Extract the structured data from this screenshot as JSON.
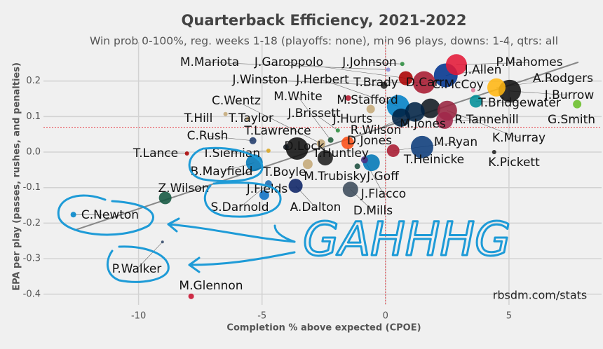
{
  "chart_data": {
    "type": "scatter",
    "title": "Quarterback Efficiency, 2021-2022",
    "subtitle": "Win prob 0-100%, reg. weeks 1-18 (playoffs: none), min 96 plays, downs: 1-4, qtrs: all",
    "x_label": "Completion % above expected (CPOE)",
    "y_label": "EPA per play (passes, rushes, and penalties)",
    "source": "rbsdm.com/stats",
    "annotation": "GAHHHG",
    "xlim": [
      -13.85,
      8.75
    ],
    "xticks": [
      -10,
      -5,
      0,
      5
    ],
    "ylim": [
      -0.43,
      0.29
    ],
    "yticks": [
      0.2,
      0.1,
      {
        "value": 0,
        "label": "0.0"
      },
      -0.1,
      -0.2,
      -0.3,
      -0.4
    ],
    "grid": true,
    "reference_lines": {
      "x": 0,
      "y": 0.07,
      "color": "#e8474f"
    },
    "trendline": {
      "x": [
        -12.6,
        7.81
      ],
      "y": [
        -0.22,
        0.253
      ],
      "color": "#888888"
    },
    "series": [
      {
        "name": "QBs",
        "labels": [
          "P.Mahomes",
          "J.Allen",
          "J.Johnson",
          "M.Mariota",
          "J.Garoppolo",
          "T.Brady",
          "J.Winston",
          "C.McCoy",
          "A.Rodgers",
          "J.Burrow",
          "G.Smith",
          "T.Bridgewater",
          "J.Herbert",
          "M.Stafford",
          "D.Carr",
          "J.Hurts",
          "M.Jones",
          "R.Tannehill",
          "R.Wilson",
          "K.Murray",
          "M.Ryan",
          "T.Heinicke",
          "K.Pickett",
          "C.Wentz",
          "M.White",
          "J.Brissett",
          "D.Lock",
          "T.Huntley",
          "D.Jones",
          "J.Goff",
          "M.Trubisky",
          "J.Flacco",
          "D.Mills",
          "A.Dalton",
          "J.Fields",
          "S.Darnold",
          "T.Boyle",
          "B.Mayfield",
          "T.Siemian",
          "T.Lance",
          "C.Rush",
          "T.Lawrence",
          "T.Hill",
          "T.Taylor",
          "Z.Wilson",
          "C.Newton",
          "P.Walker",
          "M.Glennon"
        ],
        "x": [
          2.87,
          2.44,
          0.68,
          0.11,
          0.82,
          1.56,
          -0.06,
          3.55,
          4.49,
          5.03,
          7.76,
          3.66,
          0.51,
          -1.51,
          1.82,
          -0.6,
          1.19,
          2.39,
          0.63,
          2.5,
          0.31,
          1.48,
          4.4,
          -2.61,
          -2.22,
          -1.93,
          -3.58,
          -2.44,
          -1.53,
          -0.57,
          -1.14,
          -0.85,
          -1.42,
          -3.64,
          -4.91,
          -4.74,
          -3.15,
          -5.31,
          -4.74,
          -8.04,
          -5.37,
          -4.03,
          -6.48,
          -5.57,
          -8.92,
          -12.64,
          -9.03,
          -7.87
        ],
        "values": [
          0.246,
          0.216,
          0.248,
          0.232,
          0.208,
          0.196,
          0.188,
          0.174,
          0.182,
          0.172,
          0.135,
          0.143,
          0.129,
          0.152,
          0.123,
          0.121,
          0.113,
          0.089,
          0.097,
          0.117,
          0.004,
          0.014,
          0.0,
          0.024,
          0.034,
          0.061,
          0.01,
          -0.016,
          0.026,
          -0.03,
          -0.04,
          -0.022,
          -0.105,
          -0.095,
          -0.121,
          -0.089,
          -0.034,
          -0.03,
          0.004,
          -0.004,
          0.032,
          0.014,
          0.107,
          0.093,
          -0.129,
          -0.176,
          -0.253,
          -0.406
        ],
        "sizes": [
          15,
          17,
          3,
          3,
          10,
          16,
          5,
          3,
          13,
          16,
          6,
          9,
          16,
          4,
          14,
          6,
          14,
          12,
          13,
          14,
          9,
          16,
          3,
          6,
          4,
          3,
          16,
          11,
          9,
          12,
          4,
          5,
          11,
          10,
          7,
          5,
          7,
          12,
          3,
          3,
          5,
          4,
          3,
          3,
          9,
          4,
          2,
          4
        ],
        "colors": [
          "#e31837",
          "#00338d",
          "#2b8c3e",
          "#8a8fd8",
          "#aa0000",
          "#a71930",
          "#222222",
          "#e07a9a",
          "#ffb612",
          "#111111",
          "#69be28",
          "#008e97",
          "#0080c6",
          "#b3162c",
          "#101820",
          "#c4a878",
          "#002244",
          "#a0284a",
          "#002244",
          "#97233f",
          "#a71930",
          "#0b3b7a",
          "#202020",
          "#c4a878",
          "#1f5c3a",
          "#2b8c3e",
          "#101010",
          "#1c1c1c",
          "#fb4f14",
          "#0076b6",
          "#1b4d3e",
          "#4b2e83",
          "#3b4a5a",
          "#0b2265",
          "#0b6fc4",
          "#1a6ab0",
          "#c4a878",
          "#0076b6",
          "#d9a520",
          "#aa0000",
          "#203a6a",
          "#101820",
          "#c4a878",
          "#c4a878",
          "#125740",
          "#0085ca",
          "#33496a",
          "#c8102e"
        ]
      }
    ]
  }
}
